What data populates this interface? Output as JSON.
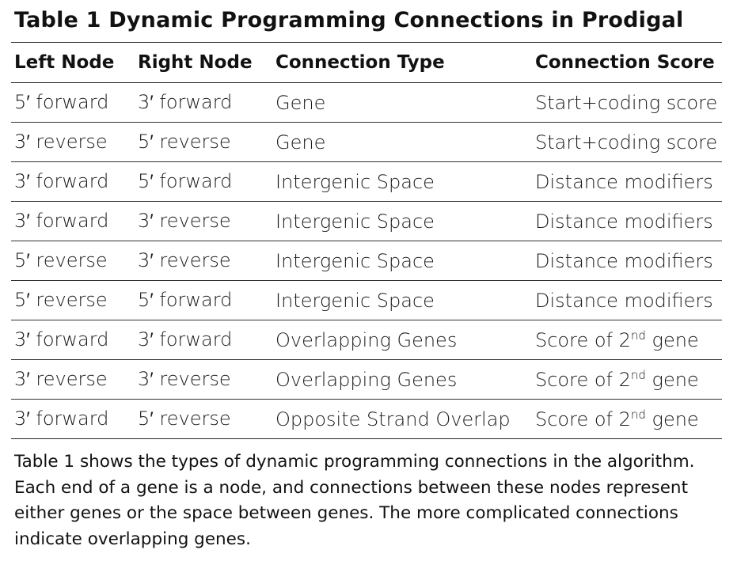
{
  "title": "Table 1 Dynamic Programming Connections in Prodigal",
  "columns": [
    "Left Node",
    "Right Node",
    "Connection Type",
    "Connection Score"
  ],
  "rows": [
    {
      "left": "5′ forward",
      "right": "3′ forward",
      "type": "Gene",
      "score": "Start+coding score",
      "score_sup": "",
      "score_tail": ""
    },
    {
      "left": "3′ reverse",
      "right": "5′ reverse",
      "type": "Gene",
      "score": "Start+coding score",
      "score_sup": "",
      "score_tail": ""
    },
    {
      "left": "3′ forward",
      "right": "5′ forward",
      "type": "Intergenic Space",
      "score": "Distance modifiers",
      "score_sup": "",
      "score_tail": ""
    },
    {
      "left": "3′ forward",
      "right": "3′ reverse",
      "type": "Intergenic Space",
      "score": "Distance modifiers",
      "score_sup": "",
      "score_tail": ""
    },
    {
      "left": "5′ reverse",
      "right": "3′ reverse",
      "type": "Intergenic Space",
      "score": "Distance modifiers",
      "score_sup": "",
      "score_tail": ""
    },
    {
      "left": "5′ reverse",
      "right": "5′ forward",
      "type": "Intergenic Space",
      "score": "Distance modifiers",
      "score_sup": "",
      "score_tail": ""
    },
    {
      "left": "3′ forward",
      "right": "3′ forward",
      "type": "Overlapping Genes",
      "score": "Score of 2",
      "score_sup": "nd",
      "score_tail": " gene"
    },
    {
      "left": "3′ reverse",
      "right": "3′ reverse",
      "type": "Overlapping Genes",
      "score": "Score of 2",
      "score_sup": "nd",
      "score_tail": " gene"
    },
    {
      "left": "3′ forward",
      "right": "5′ reverse",
      "type": "Opposite Strand Overlap",
      "score": "Score of 2",
      "score_sup": "nd",
      "score_tail": " gene"
    }
  ],
  "caption": "Table 1 shows the types of dynamic programming connections in the algorithm. Each end of a gene is a node, and connections between these nodes represent either genes or the space between genes. The more complicated connections indicate overlapping genes."
}
